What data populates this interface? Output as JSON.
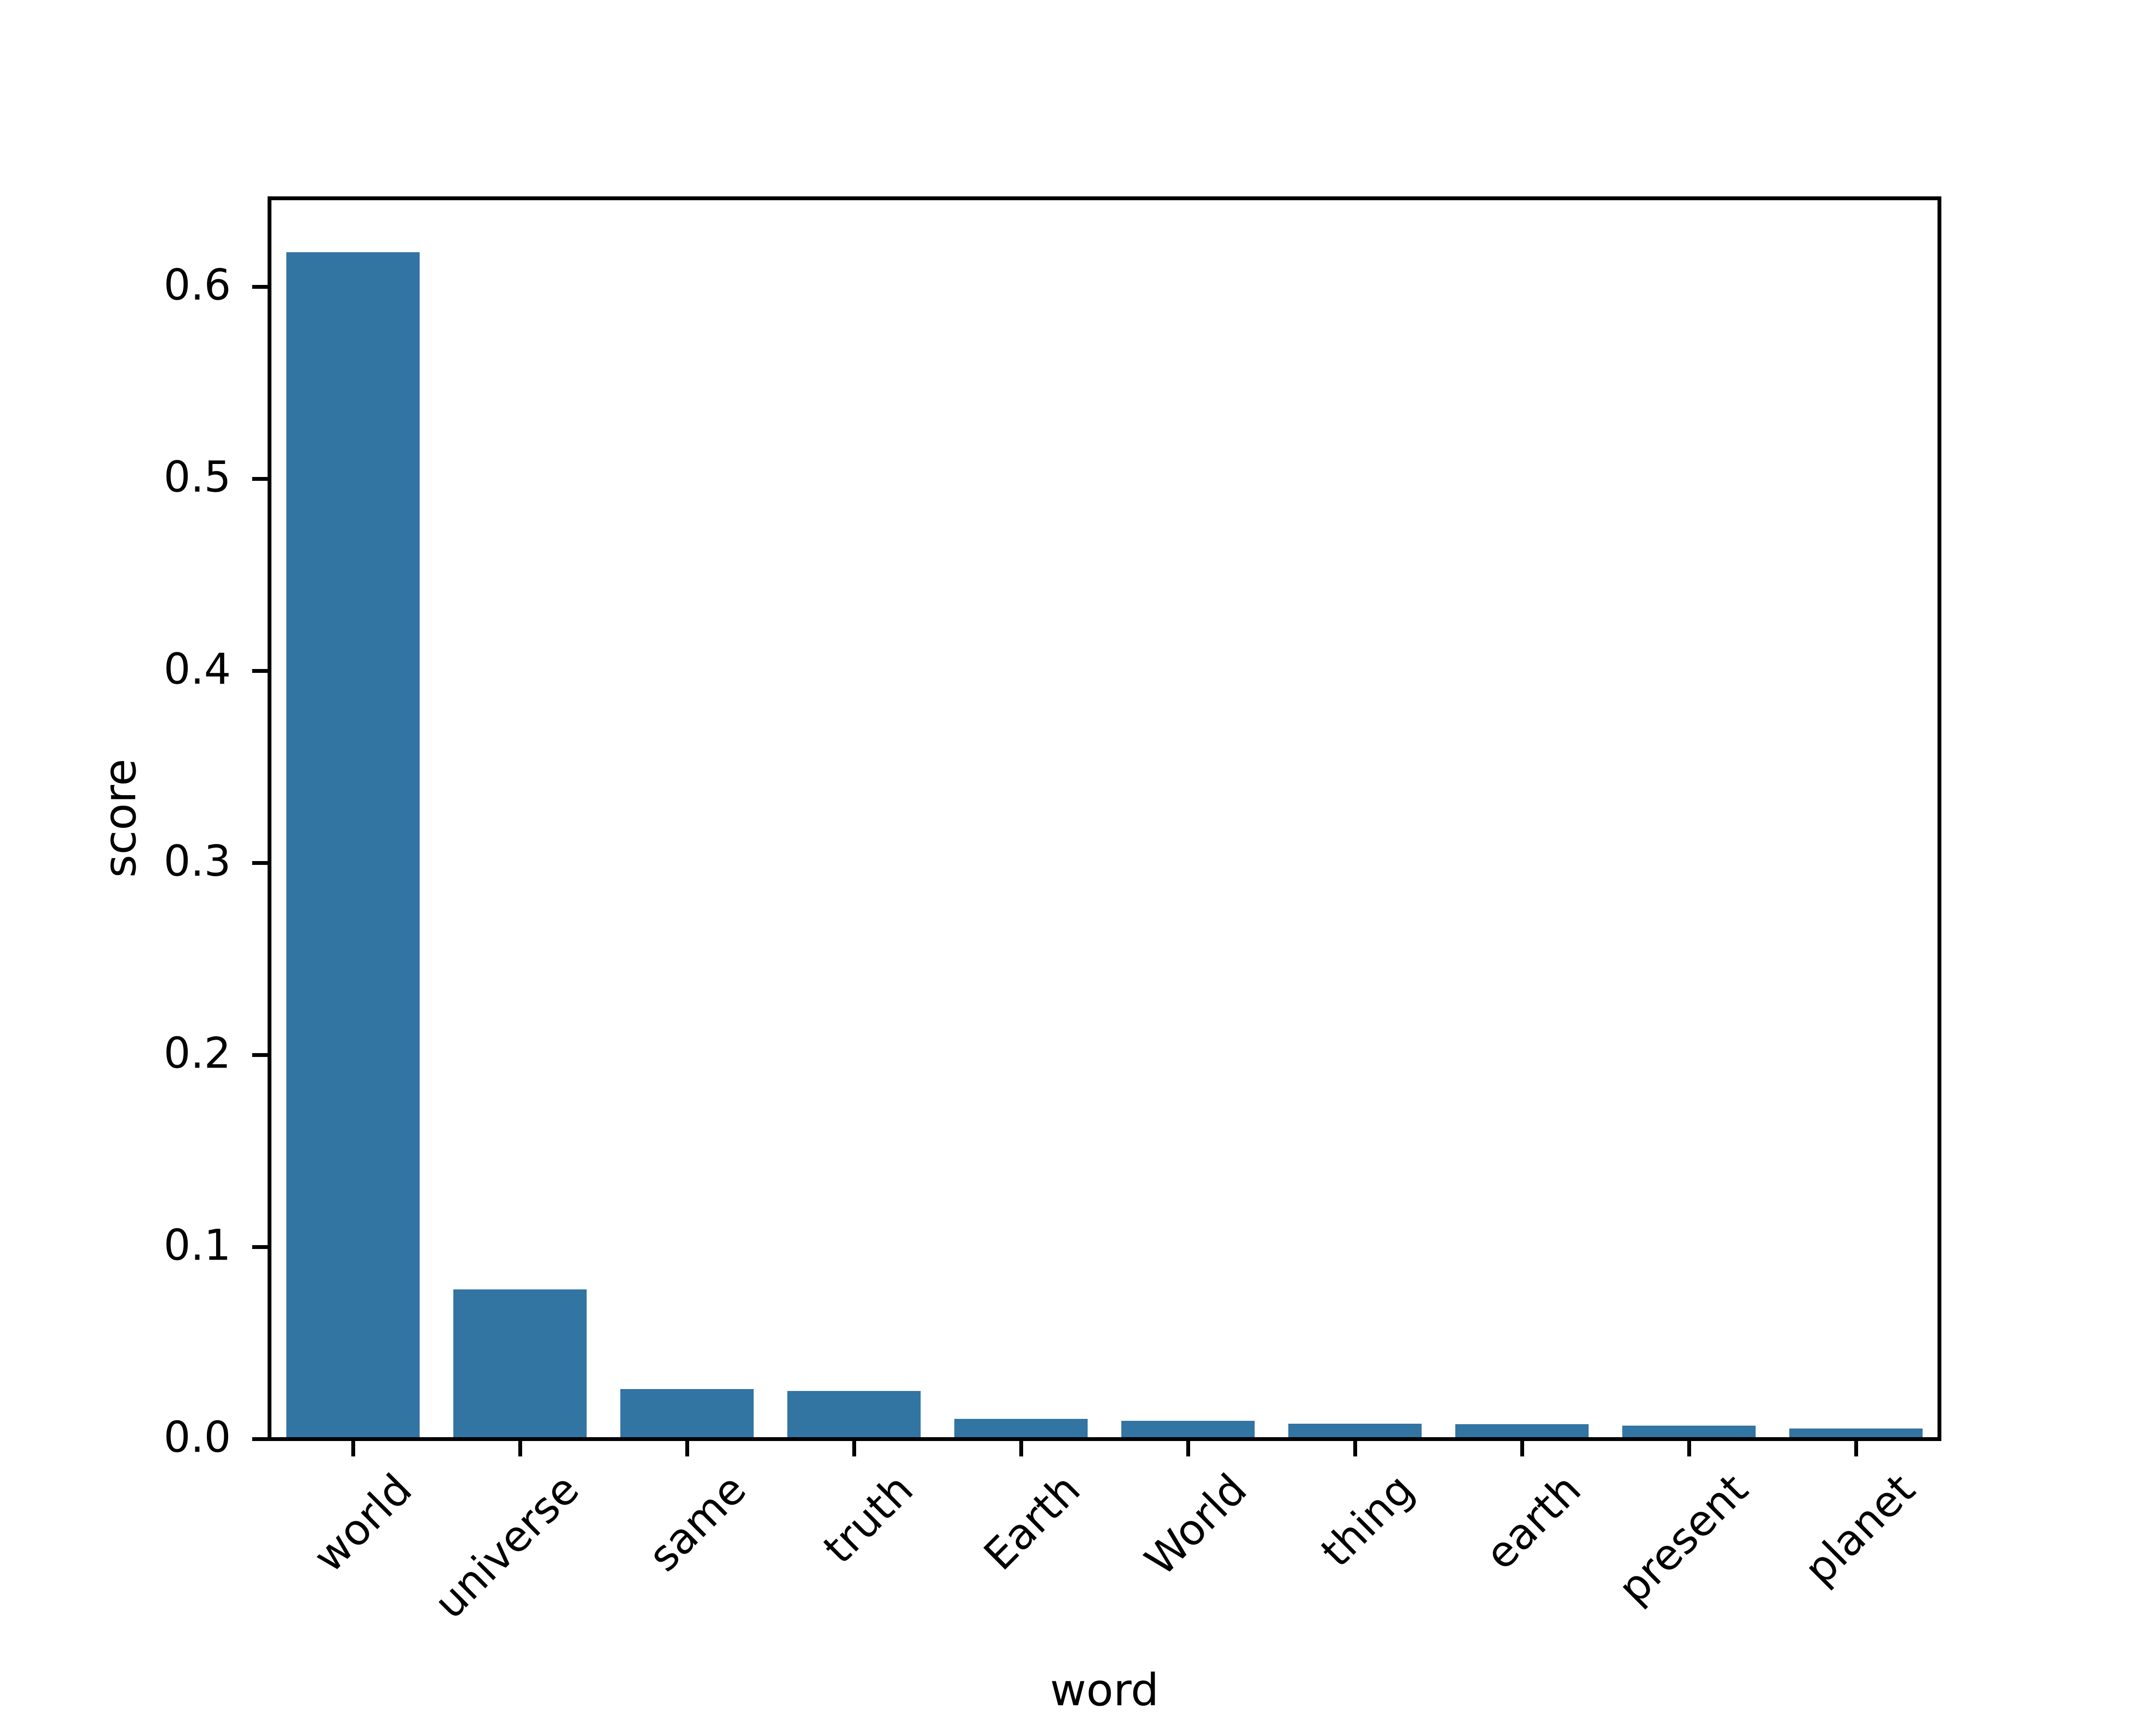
{
  "figure": {
    "background": "#ffffff",
    "text_color": "#000000"
  },
  "chart_data": {
    "type": "bar",
    "title": "",
    "xlabel": "word",
    "ylabel": "score",
    "categories": [
      "world",
      "universe",
      "same",
      "truth",
      "Earth",
      "World",
      "thing",
      "earth",
      "present",
      "planet"
    ],
    "values": [
      0.617,
      0.077,
      0.025,
      0.024,
      0.0095,
      0.0085,
      0.007,
      0.0068,
      0.006,
      0.0045
    ],
    "bar_color": "#3274a2",
    "axis_color": "#000000",
    "ylim": [
      0,
      0.6466
    ],
    "yticks": [
      0.0,
      0.1,
      0.2,
      0.3,
      0.4,
      0.5,
      0.6
    ],
    "ytick_labels": [
      "0.0",
      "0.1",
      "0.2",
      "0.3",
      "0.4",
      "0.5",
      "0.6"
    ],
    "xtick_rotation_deg": 45,
    "grid": false,
    "legend": null
  }
}
